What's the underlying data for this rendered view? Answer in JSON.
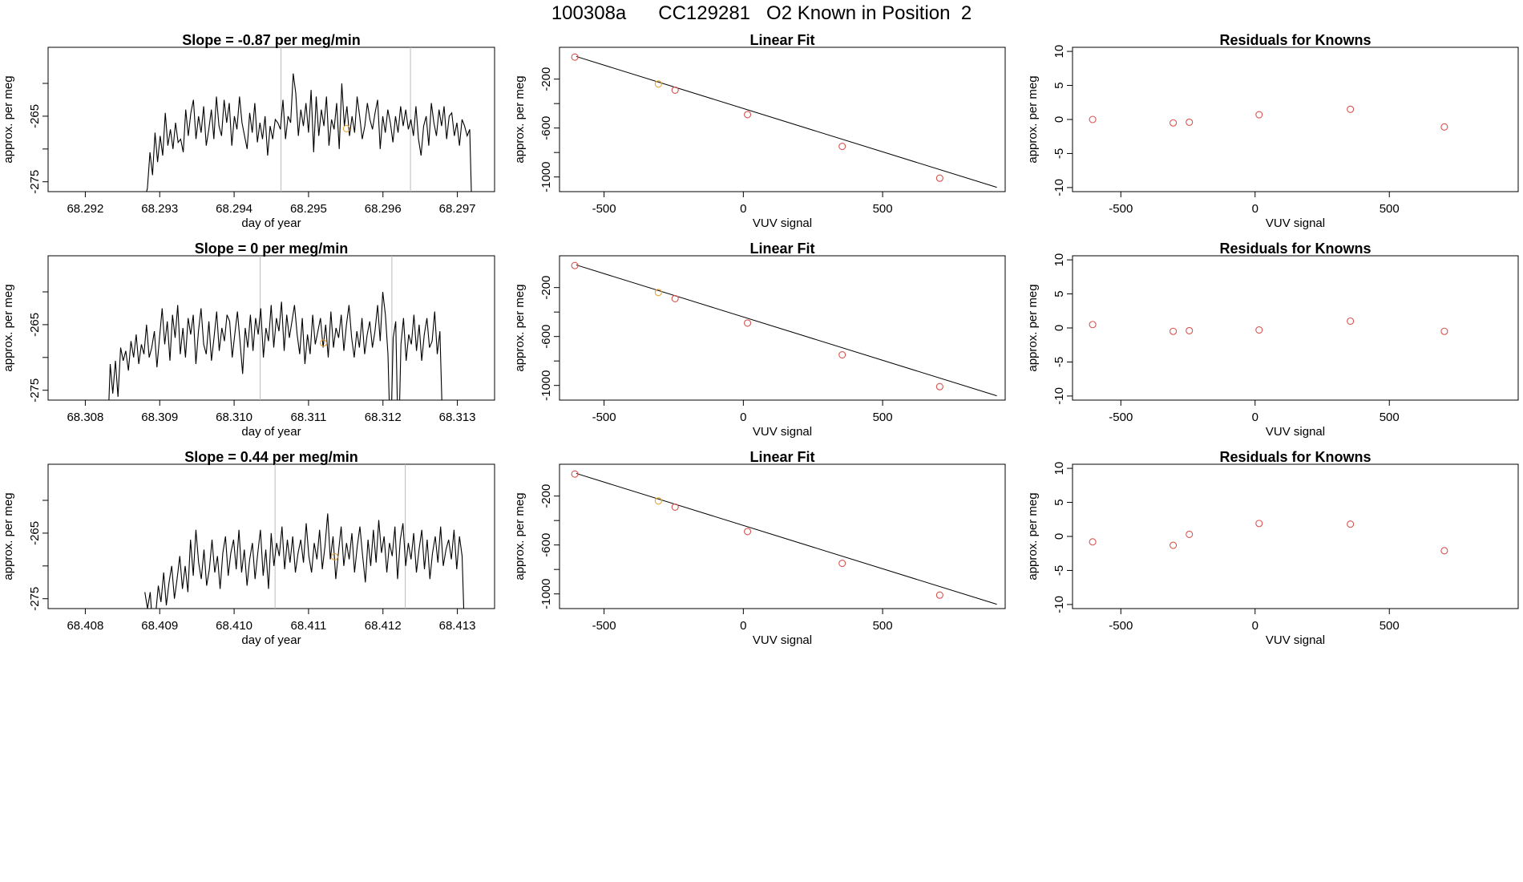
{
  "main_title": "100308a      CC129281   O2 Known in Position  2",
  "colors": {
    "line": "#000000",
    "point": "#d9534f",
    "highlight": "#e8a33a",
    "vline": "#bbbbbb",
    "frame": "#000000"
  },
  "chart_data": [
    {
      "type": "line",
      "title": "Slope =  -0.87  per meg/min",
      "xlabel": "day of year",
      "ylabel": "approx. per meg",
      "xlim": [
        68.2915,
        68.2975
      ],
      "ylim": [
        -276.5,
        -254.5
      ],
      "xticks": [
        68.292,
        68.293,
        68.294,
        68.295,
        68.296,
        68.297
      ],
      "xtick_labels": [
        "68.292",
        "68.293",
        "68.294",
        "68.295",
        "68.296",
        "68.297"
      ],
      "yticks": [
        -275,
        -270,
        -265,
        -260
      ],
      "ytick_labels": [
        "-275",
        "",
        "-265",
        ""
      ],
      "vlines": [
        68.29463,
        68.29637
      ],
      "highlight": [
        68.29551,
        -266.9
      ],
      "x_start": 68.2928,
      "x_end": 68.2972,
      "y": [
        -277.5,
        -276.0,
        -270.5,
        -274.0,
        -267.5,
        -272.0,
        -268.0,
        -271.0,
        -264.5,
        -269.5,
        -267.0,
        -270.0,
        -266.0,
        -269.0,
        -268.5,
        -270.5,
        -264.0,
        -268.0,
        -264.5,
        -262.5,
        -268.5,
        -265.0,
        -267.5,
        -263.5,
        -269.5,
        -267.0,
        -264.0,
        -268.5,
        -262.0,
        -266.5,
        -268.0,
        -262.5,
        -266.0,
        -263.0,
        -269.5,
        -265.0,
        -267.0,
        -262.0,
        -266.0,
        -268.0,
        -270.0,
        -264.5,
        -267.5,
        -263.0,
        -269.0,
        -266.0,
        -268.5,
        -265.0,
        -271.0,
        -266.5,
        -268.5,
        -265.5,
        -266.0,
        -267.0,
        -262.5,
        -268.5,
        -265.0,
        -266.0,
        -258.5,
        -261.5,
        -268.0,
        -264.0,
        -266.5,
        -263.0,
        -267.5,
        -261.0,
        -270.5,
        -262.0,
        -268.0,
        -264.0,
        -266.5,
        -262.0,
        -269.5,
        -265.5,
        -267.0,
        -263.0,
        -270.0,
        -260.0,
        -266.5,
        -263.5,
        -268.0,
        -265.0,
        -267.5,
        -262.0,
        -265.0,
        -268.5,
        -266.5,
        -263.0,
        -265.5,
        -267.0,
        -264.5,
        -262.5,
        -270.0,
        -265.0,
        -267.5,
        -264.0,
        -266.0,
        -269.0,
        -265.0,
        -267.5,
        -263.5,
        -266.5,
        -264.0,
        -267.0,
        -265.5,
        -268.0,
        -263.5,
        -268.5,
        -271.0,
        -266.5,
        -265.0,
        -269.5,
        -263.0,
        -266.0,
        -268.0,
        -264.0,
        -266.5,
        -263.5,
        -268.5,
        -265.0,
        -264.5,
        -268.0,
        -266.0,
        -269.5,
        -265.5,
        -266.5,
        -268.0,
        -267.0,
        -282.0
      ]
    },
    {
      "type": "scatter",
      "title": "Linear Fit",
      "xlabel": "VUV signal",
      "ylabel": "approx. per meg",
      "xlim": [
        -660,
        940
      ],
      "ylim": [
        -1120,
        60
      ],
      "xticks": [
        -500,
        0,
        500
      ],
      "xtick_labels": [
        "-500",
        "0",
        "500"
      ],
      "yticks": [
        -200,
        -400,
        -600,
        -800,
        -1000
      ],
      "ytick_labels": [
        "-200",
        "",
        "-600",
        "",
        "-1000"
      ],
      "x": [
        -605,
        -305,
        -245,
        15,
        355,
        705
      ],
      "y": [
        -20,
        -240,
        -290,
        -490,
        -750,
        -1010
      ],
      "point_colors": [
        "point",
        "highlight",
        "point",
        "point",
        "point",
        "point"
      ],
      "fit_line": [
        [
          -600,
          -15
        ],
        [
          910,
          -1085
        ]
      ]
    },
    {
      "type": "scatter",
      "title": "Residuals for Knowns",
      "xlabel": "VUV signal",
      "ylabel": "approx. per meg",
      "xlim": [
        -680,
        980
      ],
      "ylim": [
        -10.6,
        10.6
      ],
      "xticks": [
        -500,
        0,
        500
      ],
      "xtick_labels": [
        "-500",
        "0",
        "500"
      ],
      "yticks": [
        -10,
        -5,
        0,
        5,
        10
      ],
      "ytick_labels": [
        "-10",
        "-5",
        "0",
        "5",
        "10"
      ],
      "x": [
        -605,
        -305,
        -245,
        15,
        355,
        705
      ],
      "y": [
        0.0,
        -0.5,
        -0.4,
        0.7,
        1.5,
        -1.1
      ]
    },
    {
      "type": "line",
      "title": "Slope =  0  per meg/min",
      "xlabel": "day of year",
      "ylabel": "approx. per meg",
      "xlim": [
        68.3075,
        68.3135
      ],
      "ylim": [
        -276.5,
        -254.5
      ],
      "xticks": [
        68.308,
        68.309,
        68.31,
        68.311,
        68.312,
        68.313
      ],
      "xtick_labels": [
        "68.308",
        "68.309",
        "68.310",
        "68.311",
        "68.312",
        "68.313"
      ],
      "yticks": [
        -275,
        -270,
        -265,
        -260
      ],
      "ytick_labels": [
        "-275",
        "",
        "-265",
        ""
      ],
      "vlines": [
        68.31035,
        68.31212
      ],
      "highlight": [
        68.3112,
        -267.8
      ],
      "x_start": 68.3083,
      "x_end": 68.3128,
      "y": [
        -282.0,
        -271.0,
        -275.5,
        -270.5,
        -276.0,
        -268.5,
        -270.5,
        -269.0,
        -272.0,
        -267.5,
        -270.0,
        -266.5,
        -271.0,
        -268.0,
        -269.5,
        -265.0,
        -270.0,
        -268.5,
        -266.0,
        -271.5,
        -267.0,
        -262.5,
        -268.0,
        -264.5,
        -270.5,
        -263.5,
        -267.0,
        -262.0,
        -269.5,
        -265.5,
        -270.0,
        -264.0,
        -266.5,
        -263.5,
        -271.0,
        -266.0,
        -262.5,
        -268.0,
        -269.5,
        -264.5,
        -270.5,
        -267.0,
        -263.0,
        -269.0,
        -265.5,
        -267.5,
        -263.5,
        -264.5,
        -270.0,
        -266.5,
        -263.0,
        -267.5,
        -272.5,
        -265.5,
        -268.5,
        -263.5,
        -269.0,
        -264.0,
        -266.5,
        -262.5,
        -270.0,
        -265.5,
        -267.5,
        -262.0,
        -268.5,
        -264.0,
        -266.0,
        -261.5,
        -269.0,
        -263.5,
        -267.0,
        -264.5,
        -262.0,
        -266.5,
        -269.5,
        -264.0,
        -271.0,
        -266.5,
        -269.5,
        -263.5,
        -268.0,
        -266.0,
        -264.0,
        -268.5,
        -265.0,
        -270.0,
        -263.0,
        -268.5,
        -265.5,
        -267.0,
        -263.5,
        -269.0,
        -265.0,
        -262.0,
        -267.0,
        -270.0,
        -266.0,
        -268.5,
        -264.0,
        -269.5,
        -266.5,
        -264.5,
        -268.5,
        -266.0,
        -262.0,
        -267.5,
        -260.0,
        -263.5,
        -269.5,
        -284.0,
        -267.0,
        -264.5,
        -285.0,
        -268.0,
        -264.0,
        -270.5,
        -266.5,
        -268.0,
        -263.5,
        -269.0,
        -265.0,
        -270.5,
        -266.5,
        -264.0,
        -268.5,
        -267.5,
        -263.0,
        -269.5,
        -266.0,
        -280.0
      ]
    },
    {
      "type": "scatter",
      "title": "Linear Fit",
      "xlabel": "VUV signal",
      "ylabel": "approx. per meg",
      "xlim": [
        -660,
        940
      ],
      "ylim": [
        -1120,
        60
      ],
      "xticks": [
        -500,
        0,
        500
      ],
      "xtick_labels": [
        "-500",
        "0",
        "500"
      ],
      "yticks": [
        -200,
        -400,
        -600,
        -800,
        -1000
      ],
      "ytick_labels": [
        "-200",
        "",
        "-600",
        "",
        "-1000"
      ],
      "x": [
        -605,
        -305,
        -245,
        15,
        355,
        705
      ],
      "y": [
        -20,
        -240,
        -290,
        -490,
        -750,
        -1010
      ],
      "point_colors": [
        "point",
        "highlight",
        "point",
        "point",
        "point",
        "point"
      ],
      "fit_line": [
        [
          -600,
          -15
        ],
        [
          910,
          -1085
        ]
      ]
    },
    {
      "type": "scatter",
      "title": "Residuals for Knowns",
      "xlabel": "VUV signal",
      "ylabel": "approx. per meg",
      "xlim": [
        -680,
        980
      ],
      "ylim": [
        -10.6,
        10.6
      ],
      "xticks": [
        -500,
        0,
        500
      ],
      "xtick_labels": [
        "-500",
        "0",
        "500"
      ],
      "yticks": [
        -10,
        -5,
        0,
        5,
        10
      ],
      "ytick_labels": [
        "-10",
        "-5",
        "0",
        "5",
        "10"
      ],
      "x": [
        -605,
        -305,
        -245,
        15,
        355,
        705
      ],
      "y": [
        0.5,
        -0.5,
        -0.4,
        -0.3,
        1.0,
        -0.5
      ]
    },
    {
      "type": "line",
      "title": "Slope =  0.44  per meg/min",
      "xlabel": "day of year",
      "ylabel": "approx. per meg",
      "xlim": [
        68.4075,
        68.4135
      ],
      "ylim": [
        -276.5,
        -254.5
      ],
      "xticks": [
        68.408,
        68.409,
        68.41,
        68.411,
        68.412,
        68.413
      ],
      "xtick_labels": [
        "68.408",
        "68.409",
        "68.410",
        "68.411",
        "68.412",
        "68.413"
      ],
      "yticks": [
        -275,
        -270,
        -265,
        -260
      ],
      "ytick_labels": [
        "-275",
        "",
        "-265",
        ""
      ],
      "vlines": [
        68.41055,
        68.4123
      ],
      "highlight": [
        68.41135,
        -268.6
      ],
      "x_start": 68.4088,
      "x_end": 68.4131,
      "y": [
        -274.0,
        -276.5,
        -274.0,
        -280.0,
        -277.5,
        -273.0,
        -275.5,
        -271.0,
        -276.0,
        -272.5,
        -270.0,
        -275.0,
        -272.0,
        -268.5,
        -273.5,
        -270.0,
        -274.0,
        -266.0,
        -271.5,
        -264.5,
        -269.5,
        -272.0,
        -267.5,
        -273.0,
        -270.5,
        -266.0,
        -271.0,
        -268.5,
        -273.5,
        -268.0,
        -265.5,
        -271.5,
        -268.0,
        -266.0,
        -270.5,
        -264.5,
        -271.0,
        -267.5,
        -273.0,
        -269.0,
        -266.5,
        -272.0,
        -268.0,
        -264.5,
        -271.5,
        -267.5,
        -273.5,
        -265.0,
        -270.0,
        -266.5,
        -268.5,
        -264.0,
        -270.5,
        -266.0,
        -269.5,
        -265.5,
        -271.0,
        -268.0,
        -266.0,
        -269.5,
        -263.5,
        -268.5,
        -271.0,
        -266.5,
        -269.0,
        -264.5,
        -270.5,
        -267.0,
        -262.0,
        -269.0,
        -265.5,
        -272.0,
        -268.0,
        -264.0,
        -270.0,
        -266.5,
        -269.0,
        -265.0,
        -271.0,
        -267.0,
        -264.0,
        -268.5,
        -272.5,
        -266.0,
        -270.0,
        -264.5,
        -269.5,
        -263.0,
        -268.0,
        -265.5,
        -271.0,
        -266.5,
        -268.5,
        -264.0,
        -272.0,
        -266.0,
        -263.5,
        -270.0,
        -266.5,
        -269.0,
        -265.0,
        -271.0,
        -267.5,
        -264.5,
        -270.5,
        -266.0,
        -272.0,
        -268.0,
        -265.5,
        -269.5,
        -264.0,
        -270.0,
        -267.5,
        -266.0,
        -269.0,
        -264.5,
        -270.5,
        -265.5,
        -268.5,
        -282.0
      ]
    },
    {
      "type": "scatter",
      "title": "Linear Fit",
      "xlabel": "VUV signal",
      "ylabel": "approx. per meg",
      "xlim": [
        -660,
        940
      ],
      "ylim": [
        -1120,
        60
      ],
      "xticks": [
        -500,
        0,
        500
      ],
      "xtick_labels": [
        "-500",
        "0",
        "500"
      ],
      "yticks": [
        -200,
        -400,
        -600,
        -800,
        -1000
      ],
      "ytick_labels": [
        "-200",
        "",
        "-600",
        "",
        "-1000"
      ],
      "x": [
        -605,
        -305,
        -245,
        15,
        355,
        705
      ],
      "y": [
        -20,
        -240,
        -290,
        -490,
        -750,
        -1010
      ],
      "point_colors": [
        "point",
        "highlight",
        "point",
        "point",
        "point",
        "point"
      ],
      "fit_line": [
        [
          -600,
          -15
        ],
        [
          910,
          -1085
        ]
      ]
    },
    {
      "type": "scatter",
      "title": "Residuals for Knowns",
      "xlabel": "VUV signal",
      "ylabel": "approx. per meg",
      "xlim": [
        -680,
        980
      ],
      "ylim": [
        -10.6,
        10.6
      ],
      "xticks": [
        -500,
        0,
        500
      ],
      "xtick_labels": [
        "-500",
        "0",
        "500"
      ],
      "yticks": [
        -10,
        -5,
        0,
        5,
        10
      ],
      "ytick_labels": [
        "-10",
        "-5",
        "0",
        "5",
        "10"
      ],
      "x": [
        -605,
        -305,
        -245,
        15,
        355,
        705
      ],
      "y": [
        -0.8,
        -1.3,
        0.3,
        1.9,
        1.8,
        -2.1
      ]
    }
  ]
}
